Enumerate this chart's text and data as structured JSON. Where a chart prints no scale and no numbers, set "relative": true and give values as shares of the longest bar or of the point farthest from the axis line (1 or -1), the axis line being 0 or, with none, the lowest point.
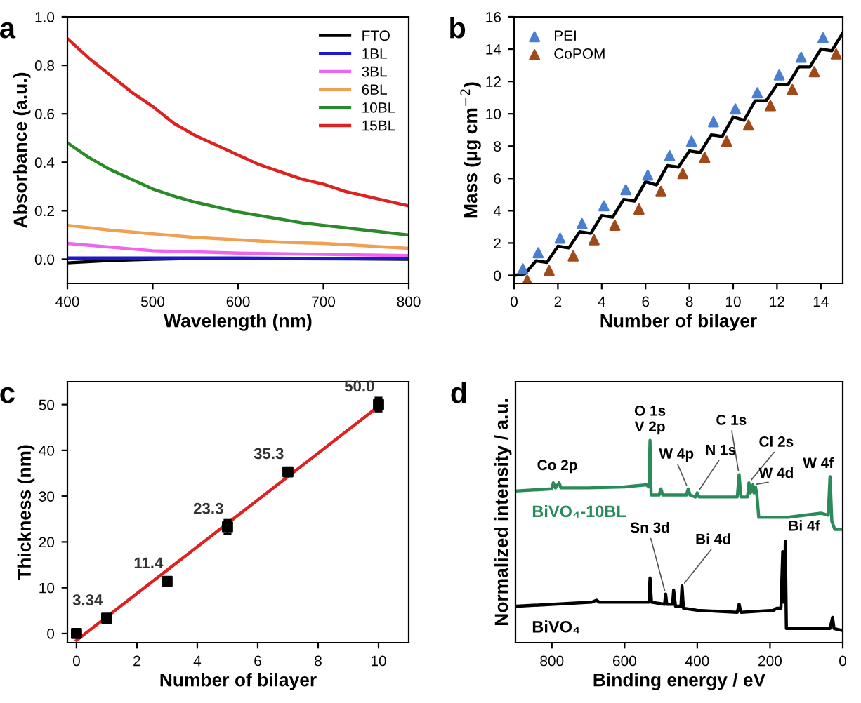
{
  "chart_data": [
    {
      "type": "line",
      "title": "a",
      "xlabel": "Wavelength (nm)",
      "ylabel": "Absorbance (a.u.)",
      "xlim": [
        400,
        800
      ],
      "ylim": [
        -0.1,
        1.0
      ],
      "xticks": [
        400,
        500,
        600,
        700,
        800
      ],
      "yticks": [
        {
          "value": 0,
          "label": "0.0"
        },
        0.2,
        0.4,
        0.6,
        0.8,
        {
          "value": 1,
          "label": "1.0"
        }
      ],
      "legend": "top right",
      "series": [
        {
          "name": "FTO",
          "color": "#000000",
          "x": [
            400,
            450,
            500,
            550,
            600,
            800
          ],
          "values": [
            -0.015,
            -0.005,
            0,
            0.003,
            0.003,
            0
          ]
        },
        {
          "name": "1BL",
          "color": "#1a1acc",
          "x": [
            400,
            500,
            600,
            700,
            800
          ],
          "values": [
            0.005,
            0.005,
            0.005,
            0.003,
            0.003
          ]
        },
        {
          "name": "3BL",
          "color": "#ee66ee",
          "x": [
            400,
            450,
            500,
            550,
            600,
            700,
            800
          ],
          "values": [
            0.065,
            0.05,
            0.035,
            0.03,
            0.025,
            0.02,
            0.015
          ]
        },
        {
          "name": "6BL",
          "color": "#f0a050",
          "x": [
            400,
            450,
            500,
            550,
            600,
            650,
            700,
            750,
            800
          ],
          "values": [
            0.14,
            0.12,
            0.105,
            0.09,
            0.08,
            0.07,
            0.065,
            0.055,
            0.045
          ]
        },
        {
          "name": "10BL",
          "color": "#2a8a2a",
          "x": [
            400,
            425,
            450,
            475,
            500,
            525,
            550,
            575,
            600,
            625,
            650,
            675,
            700,
            725,
            750,
            775,
            800
          ],
          "values": [
            0.48,
            0.42,
            0.37,
            0.33,
            0.29,
            0.26,
            0.235,
            0.215,
            0.195,
            0.18,
            0.165,
            0.15,
            0.14,
            0.13,
            0.12,
            0.11,
            0.1
          ]
        },
        {
          "name": "15BL",
          "color": "#dd2222",
          "x": [
            400,
            425,
            450,
            475,
            500,
            525,
            550,
            575,
            600,
            625,
            650,
            675,
            700,
            725,
            750,
            775,
            800
          ],
          "values": [
            0.91,
            0.83,
            0.76,
            0.69,
            0.63,
            0.56,
            0.51,
            0.47,
            0.43,
            0.39,
            0.36,
            0.33,
            0.31,
            0.28,
            0.26,
            0.24,
            0.22
          ]
        }
      ]
    },
    {
      "type": "scatter",
      "title": "b",
      "xlabel": "Number of bilayer",
      "ylabel": "Mass (µg cm$^{−2}$)",
      "xlim": [
        0,
        15
      ],
      "ylim": [
        -0.5,
        16
      ],
      "xticks": [
        0,
        2,
        4,
        6,
        8,
        10,
        12,
        14
      ],
      "yticks": [
        0,
        2,
        4,
        6,
        8,
        10,
        12,
        14,
        16
      ],
      "legend": "top left",
      "series": [
        {
          "name": "PEI",
          "color": "#4a7fd0",
          "marker": "triangle",
          "x": [
            0.4,
            1.1,
            2.1,
            3.1,
            4.1,
            5.1,
            6.1,
            7.1,
            8.1,
            9.1,
            10.1,
            11.1,
            12.1,
            13.1,
            14.1
          ],
          "values": [
            0.4,
            1.4,
            2.3,
            3.2,
            4.3,
            5.3,
            6.2,
            7.4,
            8.3,
            9.5,
            10.3,
            11.3,
            12.4,
            13.5,
            14.7
          ]
        },
        {
          "name": "CoPOM",
          "color": "#a04a1a",
          "marker": "triangle",
          "x": [
            0.6,
            1.6,
            2.7,
            3.65,
            4.6,
            5.7,
            6.7,
            7.7,
            8.7,
            9.7,
            10.7,
            11.7,
            12.7,
            13.7,
            14.7
          ],
          "values": [
            -0.3,
            0.3,
            1.2,
            2.2,
            3.1,
            4.1,
            5.2,
            6.3,
            7.3,
            8.3,
            9.3,
            10.5,
            11.5,
            12.6,
            13.7
          ]
        },
        {
          "type": "line",
          "color": "#000000",
          "marker": "none",
          "x": [
            0,
            0.5,
            1,
            1.5,
            2,
            2.5,
            3,
            3.5,
            4,
            4.5,
            5,
            5.5,
            6,
            6.5,
            7,
            7.5,
            8,
            8.5,
            9,
            9.5,
            10,
            10.5,
            11,
            11.5,
            12,
            12.5,
            13,
            13.5,
            14,
            14.5,
            15
          ],
          "values": [
            0.0,
            0.1,
            0.9,
            0.8,
            1.8,
            1.7,
            2.7,
            2.6,
            3.7,
            3.6,
            4.7,
            4.6,
            5.8,
            5.6,
            6.8,
            6.7,
            7.7,
            7.6,
            8.7,
            8.6,
            9.8,
            9.6,
            10.8,
            10.8,
            11.8,
            11.8,
            12.9,
            12.9,
            14.0,
            13.9,
            15.0
          ]
        }
      ]
    },
    {
      "type": "scatter",
      "title": "c",
      "xlabel": "Number of bilayer",
      "ylabel": "Thickness (nm)",
      "xlim": [
        -0.3,
        11
      ],
      "ylim": [
        -2,
        55
      ],
      "xticks": [
        0,
        2,
        4,
        6,
        8,
        10
      ],
      "yticks": [
        0,
        10,
        20,
        30,
        40,
        50
      ],
      "series": [
        {
          "color": "#000000",
          "marker": "square",
          "x": [
            0,
            1,
            3,
            5,
            7,
            10
          ],
          "values": [
            0,
            3.34,
            11.4,
            23.3,
            35.3,
            50.0
          ],
          "errors": [
            null,
            null,
            null,
            1.5,
            null,
            1.5
          ],
          "value_labels": [
            null,
            "3.34",
            "11.4",
            "23.3",
            "35.3",
            "50.0"
          ]
        },
        {
          "type": "line",
          "color": "#dd2222",
          "marker": "none",
          "x": [
            0,
            10
          ],
          "values": [
            -1.5,
            49.6
          ]
        }
      ]
    },
    {
      "type": "line",
      "title": "d",
      "xlabel": "Binding energy / eV",
      "ylabel": "Normalized intensity / a.u.",
      "xlim": [
        900,
        0
      ],
      "xticks": [
        800,
        600,
        400,
        200,
        0
      ],
      "relative": true,
      "legend": false,
      "series": [
        {
          "name": "BiVO₄-10BL",
          "color": "#2a8a5a",
          "x": [
            896,
            800,
            796,
            790,
            780,
            775,
            700,
            600,
            540,
            533,
            530,
            527,
            505,
            500,
            495,
            430,
            425,
            420,
            405,
            400,
            395,
            290,
            285,
            280,
            262,
            258,
            254,
            247,
            244,
            240,
            236,
            231,
            150,
            60,
            40,
            35,
            30,
            22,
            0
          ],
          "values": [
            0.75,
            0.76,
            0.79,
            0.765,
            0.79,
            0.765,
            0.765,
            0.77,
            0.78,
            0.77,
            1.0,
            0.73,
            0.73,
            0.76,
            0.73,
            0.73,
            0.76,
            0.73,
            0.72,
            0.74,
            0.72,
            0.72,
            0.83,
            0.72,
            0.72,
            0.79,
            0.74,
            0.78,
            0.74,
            0.77,
            0.73,
            0.62,
            0.62,
            0.64,
            0.63,
            0.82,
            0.6,
            0.56,
            0.56
          ]
        },
        {
          "name": "BiVO₄",
          "color": "#000000",
          "x": [
            896,
            690,
            677,
            670,
            540,
            533,
            530,
            526,
            490,
            487,
            484,
            468,
            465,
            460,
            445,
            442,
            438,
            400,
            290,
            285,
            280,
            190,
            182,
            170,
            165,
            163,
            160,
            158,
            155,
            35,
            28,
            24,
            0
          ],
          "values": [
            0.18,
            0.2,
            0.21,
            0.2,
            0.2,
            0.2,
            0.32,
            0.2,
            0.19,
            0.24,
            0.19,
            0.19,
            0.26,
            0.18,
            0.18,
            0.28,
            0.17,
            0.16,
            0.15,
            0.19,
            0.15,
            0.16,
            0.17,
            0.17,
            0.45,
            0.2,
            0.2,
            0.5,
            0.07,
            0.07,
            0.125,
            0.07,
            0.06
          ]
        }
      ],
      "annotations": [
        {
          "text": "O 1s\nV 2p",
          "x": 530,
          "y": 1.0
        },
        {
          "text": "Co 2p",
          "x": 785,
          "y": 0.79
        },
        {
          "text": "W 4p",
          "x": 425,
          "y": 0.76
        },
        {
          "text": "N 1s",
          "x": 400,
          "y": 0.74
        },
        {
          "text": "C 1s",
          "x": 285,
          "y": 0.83
        },
        {
          "text": "Cl 2s",
          "x": 258,
          "y": 0.79
        },
        {
          "text": "W 4d",
          "x": 247,
          "y": 0.78
        },
        {
          "text": "W 4f",
          "x": 35,
          "y": 0.82
        },
        {
          "text": "Bi 4f",
          "x": 160,
          "y": 0.5
        },
        {
          "text": "Sn 3d",
          "x": 487,
          "y": 0.24
        },
        {
          "text": "Bi 4d",
          "x": 442,
          "y": 0.28
        }
      ]
    }
  ]
}
